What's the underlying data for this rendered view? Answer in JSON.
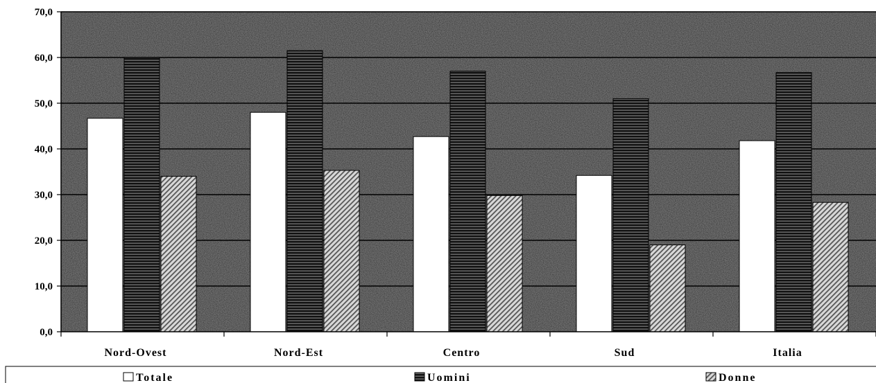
{
  "chart_data": {
    "type": "bar",
    "title": "",
    "xlabel": "",
    "ylabel": "",
    "ylim": [
      0,
      70
    ],
    "yticks": [
      "0,0",
      "10,0",
      "20,0",
      "30,0",
      "40,0",
      "50,0",
      "60,0",
      "70,0"
    ],
    "grid": true,
    "legend_position": "bottom",
    "categories": [
      "Nord-Ovest",
      "Nord-Est",
      "Centro",
      "Sud",
      "Italia"
    ],
    "series": [
      {
        "name": "Totale",
        "values": [
          46.7,
          48.0,
          42.7,
          34.2,
          41.8
        ],
        "color": "#ffffff",
        "pattern": "solid"
      },
      {
        "name": "Uomini",
        "values": [
          60.0,
          61.5,
          57.0,
          51.0,
          56.7
        ],
        "color": "#1a1a1a",
        "pattern": "horizontal-stripes"
      },
      {
        "name": "Donne",
        "values": [
          34.0,
          35.3,
          29.8,
          19.0,
          28.3
        ],
        "color": "#bdbdbd",
        "pattern": "diagonal-hatch"
      }
    ],
    "plot_background": "#6e6e6e"
  }
}
